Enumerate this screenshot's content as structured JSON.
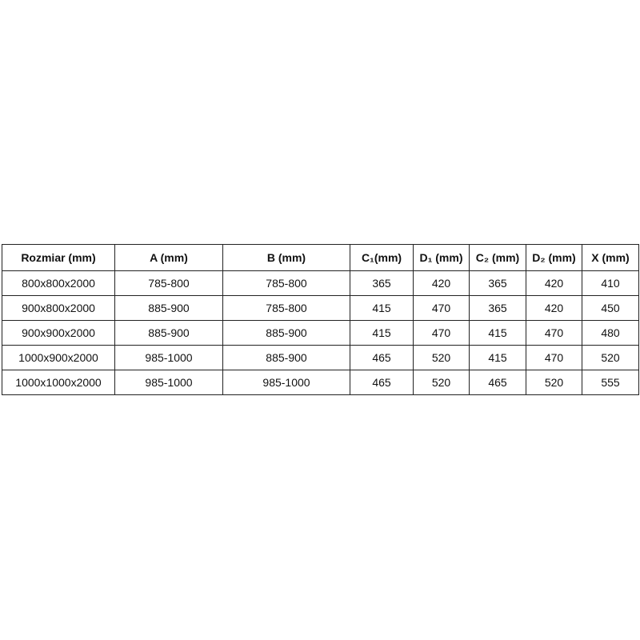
{
  "table": {
    "headers": [
      "Rozmiar (mm)",
      "A (mm)",
      "B (mm)",
      "C₁(mm)",
      "D₁ (mm)",
      "C₂ (mm)",
      "D₂ (mm)",
      "X (mm)"
    ],
    "rows": [
      [
        "800x800x2000",
        "785-800",
        "785-800",
        "365",
        "420",
        "365",
        "420",
        "410"
      ],
      [
        "900x800x2000",
        "885-900",
        "785-800",
        "415",
        "470",
        "365",
        "420",
        "450"
      ],
      [
        "900x900x2000",
        "885-900",
        "885-900",
        "415",
        "470",
        "415",
        "470",
        "480"
      ],
      [
        "1000x900x2000",
        "985-1000",
        "885-900",
        "465",
        "520",
        "415",
        "470",
        "520"
      ],
      [
        "1000x1000x2000",
        "985-1000",
        "985-1000",
        "465",
        "520",
        "465",
        "520",
        "555"
      ]
    ]
  }
}
